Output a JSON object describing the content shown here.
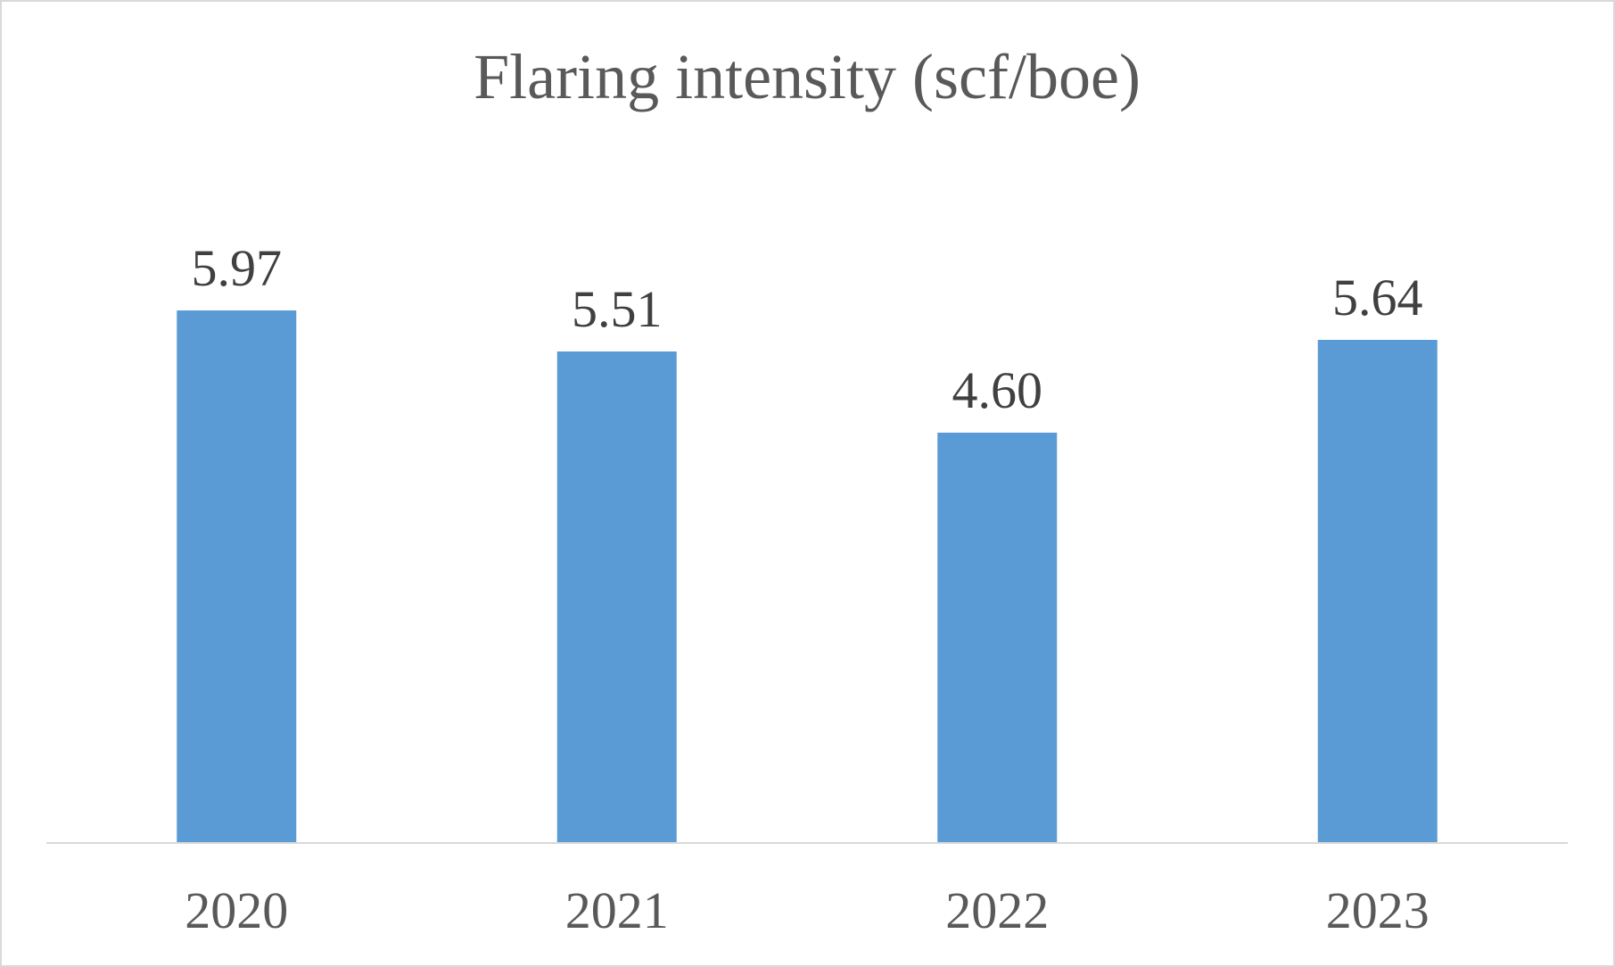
{
  "chart_data": {
    "type": "bar",
    "title": "Flaring intensity (scf/boe)",
    "xlabel": "",
    "ylabel": "",
    "categories": [
      "2020",
      "2021",
      "2022",
      "2023"
    ],
    "values": [
      5.97,
      5.51,
      4.6,
      5.64
    ],
    "value_labels": [
      "5.97",
      "5.51",
      "4.60",
      "5.64"
    ],
    "ylim": [
      0,
      6.5
    ],
    "grid": false,
    "legend": "none",
    "bar_color": "#5b9bd5"
  }
}
